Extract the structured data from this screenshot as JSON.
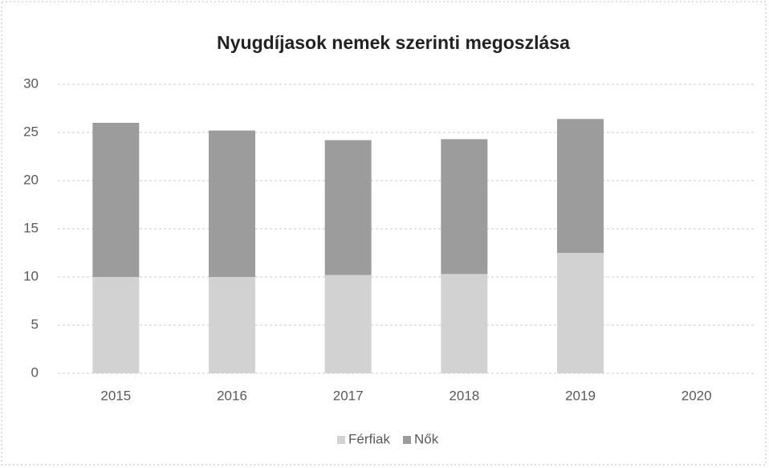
{
  "chart_data": {
    "type": "bar",
    "stacked": true,
    "title": "Nyugdíjasok nemek szerinti megoszlása",
    "categories": [
      "2015",
      "2016",
      "2017",
      "2018",
      "2019",
      "2020"
    ],
    "series": [
      {
        "name": "Férfiak",
        "color": "#d2d2d2",
        "values": [
          10,
          10,
          10.2,
          10.3,
          12.5,
          null
        ]
      },
      {
        "name": "Nők",
        "color": "#9c9c9c",
        "values": [
          16,
          15.2,
          14,
          14,
          13.9,
          null
        ]
      }
    ],
    "ylim": [
      0,
      30
    ],
    "yticks": [
      0,
      5,
      10,
      15,
      20,
      25,
      30
    ],
    "grid": true,
    "legend": "bottom"
  }
}
